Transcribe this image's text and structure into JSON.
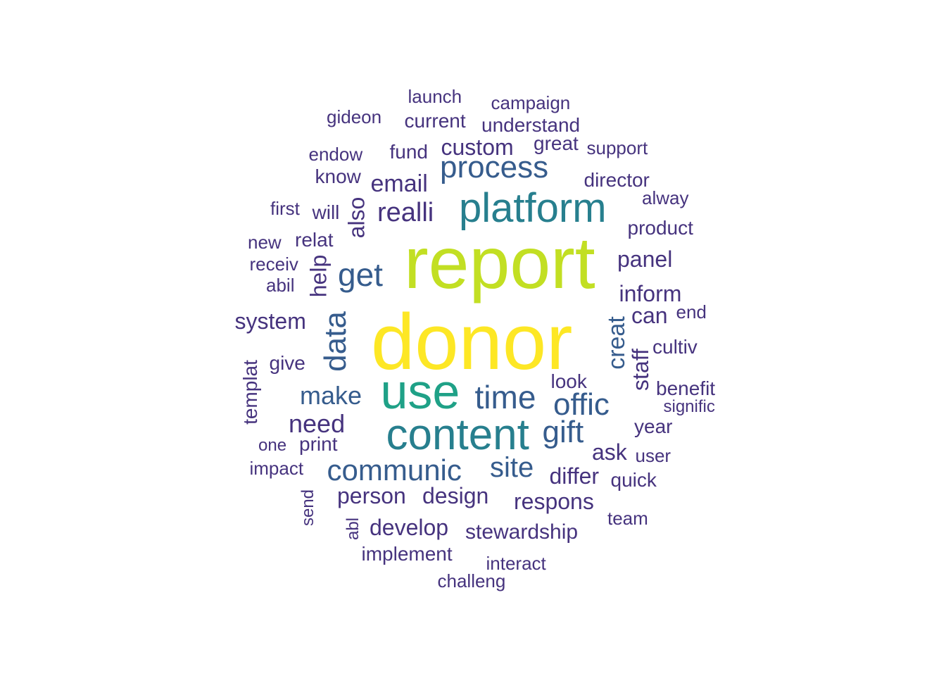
{
  "palette": {
    "c1": "#440154",
    "c2": "#46337e",
    "c3": "#365c8d",
    "c4": "#277f8e",
    "c5": "#1fa187",
    "c6": "#4ac16d",
    "c7": "#c2df23",
    "c8": "#fde725"
  },
  "words": [
    {
      "text": "donor",
      "color": "c8"
    },
    {
      "text": "report",
      "color": "c7"
    },
    {
      "text": "use",
      "color": "c5"
    },
    {
      "text": "content",
      "color": "c4"
    },
    {
      "text": "platform",
      "color": "c4"
    },
    {
      "text": "process",
      "color": "c3"
    },
    {
      "text": "time",
      "color": "c3"
    },
    {
      "text": "communic",
      "color": "c3"
    },
    {
      "text": "get",
      "color": "c3"
    },
    {
      "text": "offic",
      "color": "c3"
    },
    {
      "text": "data",
      "color": "c3"
    },
    {
      "text": "gift",
      "color": "c3"
    },
    {
      "text": "site",
      "color": "c3"
    },
    {
      "text": "realli",
      "color": "c2"
    },
    {
      "text": "make",
      "color": "c3"
    },
    {
      "text": "need",
      "color": "c2"
    },
    {
      "text": "creat",
      "color": "c3"
    },
    {
      "text": "email",
      "color": "c2"
    },
    {
      "text": "custom",
      "color": "c2"
    },
    {
      "text": "staff",
      "color": "c2"
    },
    {
      "text": "also",
      "color": "c2"
    },
    {
      "text": "design",
      "color": "c2"
    },
    {
      "text": "inform",
      "color": "c2"
    },
    {
      "text": "respons",
      "color": "c2"
    },
    {
      "text": "system",
      "color": "c2"
    },
    {
      "text": "develop",
      "color": "c2"
    },
    {
      "text": "person",
      "color": "c2"
    },
    {
      "text": "help",
      "color": "c2"
    },
    {
      "text": "panel",
      "color": "c2"
    },
    {
      "text": "ask",
      "color": "c2"
    },
    {
      "text": "differ",
      "color": "c2"
    },
    {
      "text": "can",
      "color": "c2"
    },
    {
      "text": "stewardship",
      "color": "c2"
    },
    {
      "text": "director",
      "color": "c2"
    },
    {
      "text": "implement",
      "color": "c2"
    },
    {
      "text": "product",
      "color": "c2"
    },
    {
      "text": "fund",
      "color": "c2"
    },
    {
      "text": "understand",
      "color": "c2"
    },
    {
      "text": "current",
      "color": "c2"
    },
    {
      "text": "great",
      "color": "c2"
    },
    {
      "text": "year",
      "color": "c2"
    },
    {
      "text": "quick",
      "color": "c2"
    },
    {
      "text": "look",
      "color": "c2"
    },
    {
      "text": "benefit",
      "color": "c2"
    },
    {
      "text": "relat",
      "color": "c2"
    },
    {
      "text": "print",
      "color": "c2"
    },
    {
      "text": "give",
      "color": "c2"
    },
    {
      "text": "know",
      "color": "c2"
    },
    {
      "text": "will",
      "color": "c2"
    },
    {
      "text": "templat",
      "color": "c2"
    },
    {
      "text": "cultiv",
      "color": "c2"
    },
    {
      "text": "gideon",
      "color": "c2"
    },
    {
      "text": "launch",
      "color": "c2"
    },
    {
      "text": "campaign",
      "color": "c2"
    },
    {
      "text": "support",
      "color": "c2"
    },
    {
      "text": "endow",
      "color": "c2"
    },
    {
      "text": "alway",
      "color": "c2"
    },
    {
      "text": "first",
      "color": "c2"
    },
    {
      "text": "new",
      "color": "c2"
    },
    {
      "text": "receiv",
      "color": "c2"
    },
    {
      "text": "abil",
      "color": "c2"
    },
    {
      "text": "end",
      "color": "c2"
    },
    {
      "text": "signific",
      "color": "c2"
    },
    {
      "text": "user",
      "color": "c2"
    },
    {
      "text": "one",
      "color": "c2"
    },
    {
      "text": "impact",
      "color": "c2"
    },
    {
      "text": "send",
      "color": "c2"
    },
    {
      "text": "abl",
      "color": "c2"
    },
    {
      "text": "team",
      "color": "c2"
    },
    {
      "text": "interact",
      "color": "c2"
    },
    {
      "text": "challeng",
      "color": "c2"
    }
  ]
}
